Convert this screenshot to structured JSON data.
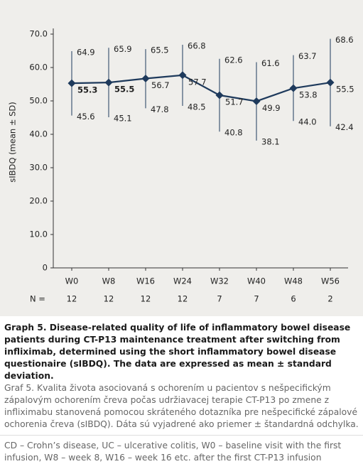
{
  "chart_data": {
    "type": "errorline",
    "y_label": "sIBDQ (mean ± SD)",
    "categories": [
      "W0",
      "W8",
      "W16",
      "W24",
      "W32",
      "W40",
      "W48",
      "W56"
    ],
    "values": [
      55.3,
      55.5,
      56.7,
      57.7,
      51.7,
      49.9,
      53.8,
      55.5
    ],
    "value_labels": [
      "55.3",
      "55.5",
      "56.7",
      "57.7",
      "51.7",
      "49.9",
      "53.8",
      "55.5"
    ],
    "upper": [
      64.9,
      65.9,
      65.5,
      66.8,
      62.6,
      61.6,
      63.7,
      68.6
    ],
    "upper_labels": [
      "64.9",
      "65.9",
      "65.5",
      "66.8",
      "62.6",
      "61.6",
      "63.7",
      "68.6"
    ],
    "lower": [
      45.6,
      45.1,
      47.8,
      48.5,
      40.8,
      38.1,
      44,
      42.4
    ],
    "lower_labels": [
      "45.6",
      "45.1",
      "47.8",
      "48.5",
      "40.8",
      "38.1",
      "44.0",
      "42.4"
    ],
    "n_label": "N =",
    "n_values": [
      12,
      12,
      12,
      12,
      7,
      7,
      6,
      2
    ],
    "color": "#1e3a5c",
    "ylim": [
      0,
      70
    ],
    "yticks": [
      0,
      {
        "value": 10,
        "label": "10.0"
      },
      {
        "value": 20,
        "label": "20.0"
      },
      {
        "value": 30,
        "label": "30.0"
      },
      {
        "value": 40,
        "label": "40.0"
      },
      {
        "value": 50,
        "label": "50.0"
      },
      {
        "value": 60,
        "label": "60.0"
      },
      {
        "value": 70,
        "label": "70.0"
      }
    ]
  },
  "caption": {
    "title": "Graph 5. Disease-related quality of life of inflammatory bowel disease patients during CT-P13 maintenance treatment after switching from infliximab, determined using the short inflammatory bowel disease questionaire (sIBDQ). The data are expressed as mean ± standard deviation.",
    "text": "Graf 5. Kvalita života asociovaná s ochorením u pacientov s nešpecifickým zápalovým ochorením čreva počas udržiavacej terapie CT-P13 po zmene z infliximabu stanovená pomocou skráteného dotazníka pre nešpecifické zápalové ochorenia čreva (sIBDQ). Dáta sú vyjadrené ako priemer ± štandardná odchylka.",
    "note": "CD – Crohn’s disease, UC – ulcerative colitis, W0 – baseline visit with the first infusion, W8 – week 8, W16 – week 16 etc. after the first CT-P13 infusion"
  }
}
